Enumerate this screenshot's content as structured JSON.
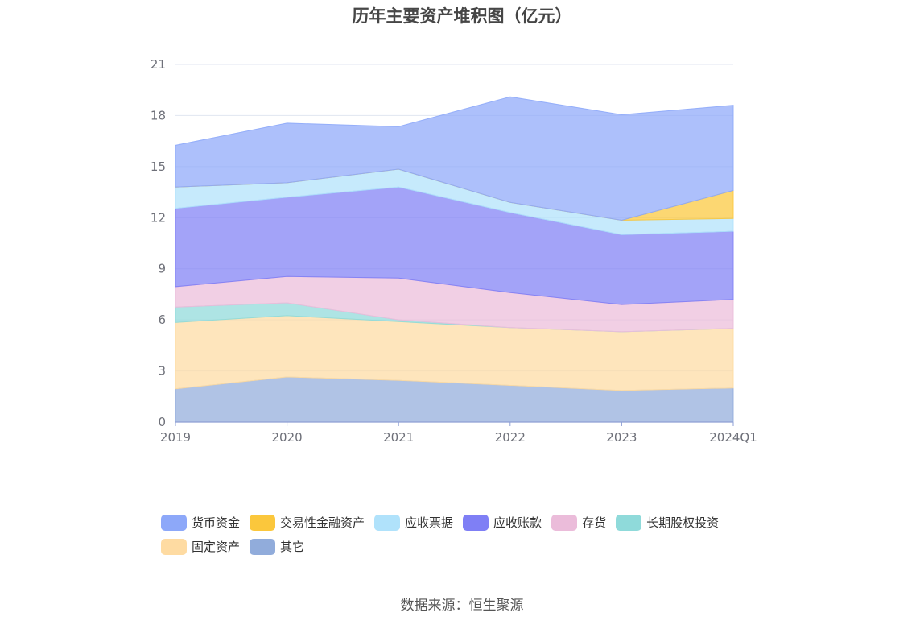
{
  "chart_data": {
    "type": "area",
    "stacked": true,
    "title": "历年主要资产堆积图（亿元）",
    "x": [
      "2019",
      "2020",
      "2021",
      "2022",
      "2023",
      "2024Q1"
    ],
    "ylim": [
      0,
      21
    ],
    "yticks": [
      "0",
      "3",
      "6",
      "9",
      "12",
      "15",
      "18",
      "21"
    ],
    "grid": true,
    "legend_position": "bottom",
    "series": [
      {
        "name": "货币资金",
        "color": "#8da8f9",
        "values": [
          2.45,
          3.5,
          2.5,
          6.2,
          6.2,
          5.0
        ]
      },
      {
        "name": "交易性金融资产",
        "color": "#fbc73c",
        "values": [
          0,
          0,
          0,
          0,
          0,
          1.65
        ]
      },
      {
        "name": "应收票据",
        "color": "#b0e2fb",
        "values": [
          1.25,
          0.85,
          1.05,
          0.6,
          0.85,
          0.75
        ]
      },
      {
        "name": "应收账款",
        "color": "#7f7ff5",
        "values": [
          4.6,
          4.65,
          5.35,
          4.7,
          4.1,
          4.0
        ]
      },
      {
        "name": "存货",
        "color": "#ebbcda",
        "values": [
          1.2,
          1.55,
          2.45,
          2.05,
          1.6,
          1.7
        ]
      },
      {
        "name": "长期股权投资",
        "color": "#8fdada",
        "values": [
          0.9,
          0.75,
          0.1,
          0,
          0,
          0
        ]
      },
      {
        "name": "固定资产",
        "color": "#fedba2",
        "values": [
          3.9,
          3.6,
          3.45,
          3.4,
          3.45,
          3.5
        ]
      },
      {
        "name": "其它",
        "color": "#91acdb",
        "values": [
          1.95,
          2.65,
          2.45,
          2.15,
          1.85,
          2.0
        ]
      }
    ]
  },
  "footer": {
    "source": "数据来源：恒生聚源"
  }
}
